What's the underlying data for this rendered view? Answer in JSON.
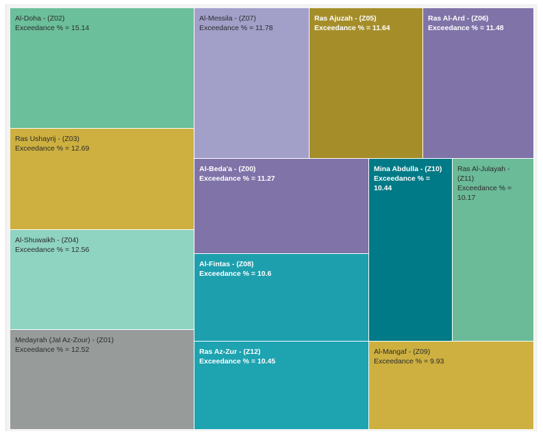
{
  "chart_data": {
    "type": "treemap",
    "measure_label": "Exceedance %",
    "items": [
      {
        "name": "Al-Doha - (Z02)",
        "value": 15.14,
        "color": "#6bbf9a",
        "dark": false
      },
      {
        "name": "Ras Ushayrij - (Z03)",
        "value": 12.69,
        "color": "#cdb040",
        "dark": false
      },
      {
        "name": "Al-Shuwaikh - (Z04)",
        "value": 12.56,
        "color": "#8fd3c1",
        "dark": false
      },
      {
        "name": "Medayrah (Jal Az-Zour) - (Z01)",
        "value": 12.52,
        "color": "#979c9b",
        "dark": false
      },
      {
        "name": "Al-Messila - (Z07)",
        "value": 11.78,
        "color": "#a29fc9",
        "dark": false
      },
      {
        "name": "Ras Ajuzah - (Z05)",
        "value": 11.64,
        "color": "#a58e2a",
        "dark": true
      },
      {
        "name": "Ras Al-Ard - (Z06)",
        "value": 11.48,
        "color": "#7f73a8",
        "dark": true
      },
      {
        "name": "Al-Beda'a - (Z00)",
        "value": 11.27,
        "color": "#7f73a8",
        "dark": true
      },
      {
        "name": "Mina Abdulla - (Z10)",
        "value": 10.44,
        "color": "#007a86",
        "dark": true
      },
      {
        "name": "Ras Al-Julayah - (Z11)",
        "value": 10.17,
        "color": "#6bba98",
        "dark": false
      },
      {
        "name": "Al-Fintas - (Z08)",
        "value": 10.6,
        "color": "#1e9fae",
        "dark": true
      },
      {
        "name": "Ras Az-Zur - (Z12)",
        "value": 10.45,
        "color": "#1ea3b1",
        "dark": true
      },
      {
        "name": "Al-Mangaf - (Z09)",
        "value": 9.93,
        "color": "#cdb040",
        "dark": false
      }
    ]
  }
}
